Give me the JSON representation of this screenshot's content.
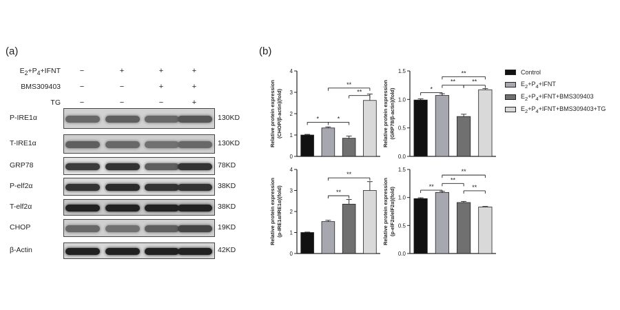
{
  "panel_a": {
    "label": "(a)",
    "conditions": [
      {
        "name_html": "E<sub>2</sub>+P<sub>4</sub>+IFNT",
        "signs": [
          "−",
          "+",
          "+",
          "+"
        ]
      },
      {
        "name_html": "BMS309403",
        "signs": [
          "−",
          "−",
          "+",
          "+"
        ]
      },
      {
        "name_html": "TG",
        "signs": [
          "−",
          "−",
          "−",
          "+"
        ]
      }
    ],
    "blots": [
      {
        "protein": "P-IRE1α",
        "kd": "130KD",
        "bg": "#d2d2d2",
        "intensity": [
          0.55,
          0.6,
          0.55,
          0.65
        ]
      },
      {
        "protein": "T-IRE1α",
        "kd": "130KD",
        "bg": "#cfcfcf",
        "intensity": [
          0.6,
          0.55,
          0.5,
          0.55
        ]
      },
      {
        "protein": "GRP78",
        "kd": "78KD",
        "bg": "#e2e2e2",
        "intensity": [
          0.8,
          0.85,
          0.6,
          0.85
        ]
      },
      {
        "protein": "P-elf2α",
        "kd": "38KD",
        "bg": "#dadada",
        "intensity": [
          0.85,
          0.9,
          0.85,
          0.85
        ]
      },
      {
        "protein": "T-elf2α",
        "kd": "38KD",
        "bg": "#c8c8c8",
        "intensity": [
          0.95,
          0.95,
          0.95,
          0.95
        ]
      },
      {
        "protein": "CHOP",
        "kd": "19KD",
        "bg": "#d0d0d0",
        "intensity": [
          0.55,
          0.5,
          0.6,
          0.75
        ]
      },
      {
        "protein": "β-Actin",
        "kd": "42KD",
        "bg": "#d8d8d8",
        "intensity": [
          0.95,
          0.95,
          0.95,
          0.95
        ]
      }
    ]
  },
  "panel_b": {
    "label": "(b)"
  },
  "legend": [
    {
      "label_html": "Control",
      "color": "#111111"
    },
    {
      "label_html": "E<sub>2</sub>+P<sub>4</sub>+IFNT",
      "color": "#a7a7af"
    },
    {
      "label_html": "E<sub>2</sub>+P<sub>4</sub>+IFNT+BMS309403",
      "color": "#707070"
    },
    {
      "label_html": "E<sub>2</sub>+P<sub>4</sub>+IFNT+BMS309403+TG",
      "color": "#d9d9d9"
    }
  ],
  "chart_data": [
    {
      "type": "bar",
      "ylabel_lines": [
        "Relative protein expression",
        "(CHOP/β-actin)(fold)"
      ],
      "ylim": [
        0,
        4
      ],
      "ticks": [
        0,
        1,
        2,
        3,
        4
      ],
      "tick_labels": [
        "0",
        "1",
        "2",
        "3",
        "4"
      ],
      "values": [
        1.0,
        1.33,
        0.85,
        2.62
      ],
      "errors": [
        0.03,
        0.05,
        0.1,
        0.3
      ],
      "sig": [
        {
          "a": 0,
          "b": 2,
          "y": 1.6,
          "label": "*",
          "mid": 1
        },
        {
          "a": 1,
          "b": 3,
          "y": 3.2,
          "label": "**"
        },
        {
          "a": 2,
          "b": 3,
          "y": 2.85,
          "label": "**"
        }
      ]
    },
    {
      "type": "bar",
      "ylabel_lines": [
        "Relative protein expression",
        "(GRP78/β-actin)(fold)"
      ],
      "ylim": [
        0,
        1.5
      ],
      "ticks": [
        0,
        0.5,
        1.0,
        1.5
      ],
      "tick_labels": [
        "0.0",
        "0.5",
        "1.0",
        "1.5"
      ],
      "values": [
        0.99,
        1.07,
        0.7,
        1.17
      ],
      "errors": [
        0.02,
        0.03,
        0.04,
        0.02
      ],
      "sig": [
        {
          "a": 0,
          "b": 1,
          "y": 1.12,
          "label": "*"
        },
        {
          "a": 1,
          "b": 3,
          "y": 1.4,
          "label": "**"
        },
        {
          "a": 1,
          "b": 2,
          "y": 1.25,
          "label": "**"
        },
        {
          "a": 2,
          "b": 3,
          "y": 1.25,
          "label": "**"
        }
      ]
    },
    {
      "type": "bar",
      "ylabel_lines": [
        "Relative protein expression",
        "(p-IRE1α/IRE1α)(fold)"
      ],
      "ylim": [
        0,
        4
      ],
      "ticks": [
        0,
        1,
        2,
        3,
        4
      ],
      "tick_labels": [
        "0",
        "1",
        "2",
        "3",
        "4"
      ],
      "values": [
        1.0,
        1.52,
        2.35,
        3.0
      ],
      "errors": [
        0.02,
        0.06,
        0.22,
        0.42
      ],
      "sig": [
        {
          "a": 1,
          "b": 2,
          "y": 2.75,
          "label": "**"
        },
        {
          "a": 1,
          "b": 3,
          "y": 3.6,
          "label": "**"
        }
      ]
    },
    {
      "type": "bar",
      "ylabel_lines": [
        "Relative protein expression",
        "(p-elF2α/elF2α)(fold)"
      ],
      "ylim": [
        0,
        1.5
      ],
      "ticks": [
        0,
        0.5,
        1.0,
        1.5
      ],
      "tick_labels": [
        "0.0",
        "0.5",
        "1.0",
        "1.5"
      ],
      "values": [
        0.98,
        1.09,
        0.91,
        0.83
      ],
      "errors": [
        0.015,
        0.02,
        0.02,
        0.01
      ],
      "sig": [
        {
          "a": 0,
          "b": 1,
          "y": 1.13,
          "label": "**"
        },
        {
          "a": 1,
          "b": 3,
          "y": 1.4,
          "label": "**"
        },
        {
          "a": 1,
          "b": 2,
          "y": 1.25,
          "label": "**"
        },
        {
          "a": 2,
          "b": 3,
          "y": 1.12,
          "label": "**"
        }
      ]
    }
  ]
}
